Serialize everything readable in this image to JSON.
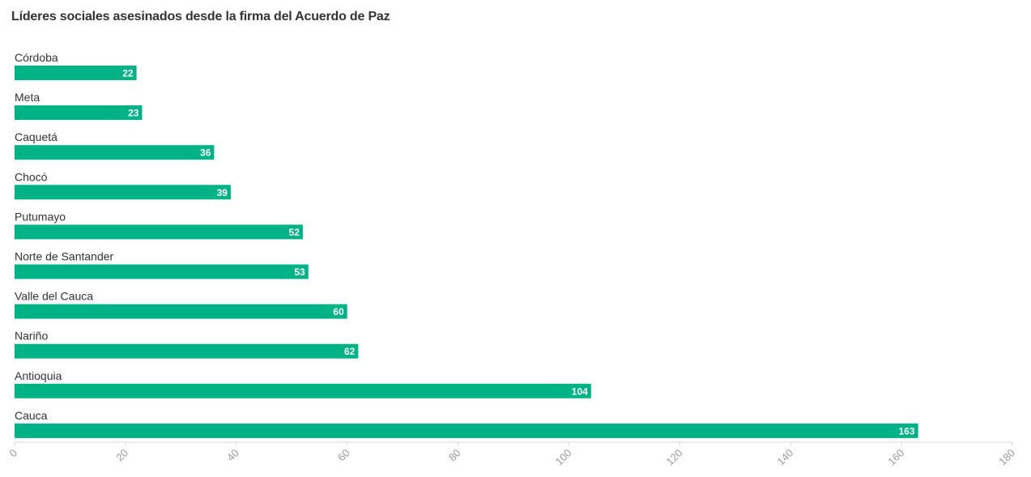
{
  "chart_data": {
    "type": "bar",
    "orientation": "horizontal",
    "title": "Líderes sociales asesinados desde la firma del Acuerdo de Paz",
    "categories": [
      "Córdoba",
      "Meta",
      "Caquetá",
      "Chocó",
      "Putumayo",
      "Norte de Santander",
      "Valle del Cauca",
      "Nariño",
      "Antioquia",
      "Cauca"
    ],
    "values": [
      22,
      23,
      36,
      39,
      52,
      53,
      60,
      62,
      104,
      163
    ],
    "xlim": [
      0,
      180
    ],
    "xticks": [
      "0",
      "20",
      "40",
      "60",
      "80",
      "100",
      "120",
      "140",
      "160",
      "180"
    ],
    "xlabel": "",
    "ylabel": "",
    "grid": false,
    "colors": {
      "bar": "#00b386",
      "axis": "#d9d9d9",
      "tick_text": "#9a9a9a"
    }
  }
}
